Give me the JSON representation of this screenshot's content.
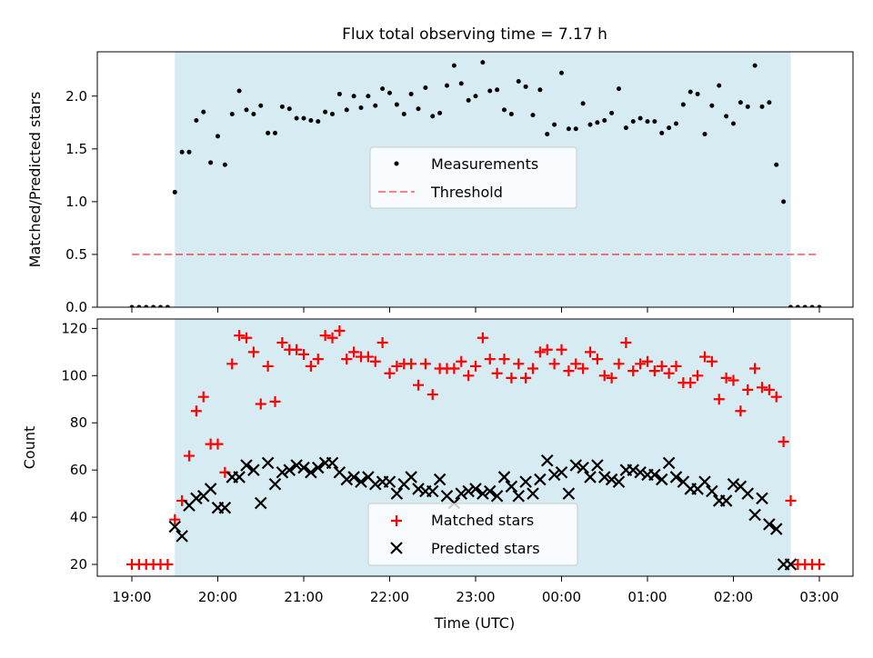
{
  "title": "Flux total observing time = 7.17 h",
  "colors": {
    "observing_span": "#add8e6",
    "measurements": "#000000",
    "threshold": "#ff0000",
    "matched": "#ff0000",
    "predicted": "#000000"
  },
  "chart_data": [
    {
      "type": "scatter",
      "x_axis": "time_utc",
      "ylabel": "Matched/Predicted stars",
      "ylim": [
        0,
        2.42
      ],
      "yticks": [
        "0.0",
        "0.5",
        "1.0",
        "1.5",
        "2.0"
      ],
      "grid": false,
      "legend_position": "center",
      "shaded_span_utc": [
        "19:30",
        "02:40"
      ],
      "threshold": {
        "name": "Threshold",
        "style": "dashed",
        "value": 0.5,
        "xrange": [
          "19:00",
          "03:00"
        ]
      },
      "series": [
        {
          "name": "Measurements",
          "marker": "dot",
          "x": [
            "19:00",
            "19:05",
            "19:10",
            "19:15",
            "19:20",
            "19:25",
            "19:30",
            "19:35",
            "19:40",
            "19:45",
            "19:50",
            "19:55",
            "20:00",
            "20:05",
            "20:10",
            "20:15",
            "20:20",
            "20:25",
            "20:30",
            "20:35",
            "20:40",
            "20:45",
            "20:50",
            "20:55",
            "21:00",
            "21:05",
            "21:10",
            "21:15",
            "21:20",
            "21:25",
            "21:30",
            "21:35",
            "21:40",
            "21:45",
            "21:50",
            "21:55",
            "22:00",
            "22:05",
            "22:10",
            "22:15",
            "22:20",
            "22:25",
            "22:30",
            "22:35",
            "22:40",
            "22:45",
            "22:50",
            "22:55",
            "23:00",
            "23:05",
            "23:10",
            "23:15",
            "23:20",
            "23:25",
            "23:30",
            "23:35",
            "23:40",
            "23:45",
            "23:50",
            "23:55",
            "00:00",
            "00:05",
            "00:10",
            "00:15",
            "00:20",
            "00:25",
            "00:30",
            "00:35",
            "00:40",
            "00:45",
            "00:50",
            "00:55",
            "01:00",
            "01:05",
            "01:10",
            "01:15",
            "01:20",
            "01:25",
            "01:30",
            "01:35",
            "01:40",
            "01:45",
            "01:50",
            "01:55",
            "02:00",
            "02:05",
            "02:10",
            "02:15",
            "02:20",
            "02:25",
            "02:30",
            "02:35",
            "02:40",
            "02:45",
            "02:50",
            "02:55",
            "03:00"
          ],
          "y": [
            0,
            0,
            0,
            0,
            0,
            0,
            1.09,
            1.47,
            1.47,
            1.77,
            1.85,
            1.37,
            1.62,
            1.35,
            1.83,
            2.05,
            1.87,
            1.83,
            1.91,
            1.65,
            1.65,
            1.9,
            1.88,
            1.79,
            1.79,
            1.77,
            1.76,
            1.85,
            1.83,
            2.02,
            1.87,
            2.0,
            1.89,
            2.0,
            1.91,
            2.07,
            2.03,
            1.92,
            1.83,
            2.02,
            1.88,
            2.08,
            1.81,
            1.84,
            2.1,
            2.29,
            2.12,
            1.96,
            2.0,
            2.32,
            2.05,
            2.06,
            1.87,
            1.83,
            2.14,
            2.09,
            1.82,
            2.06,
            1.64,
            1.73,
            2.22,
            1.69,
            1.69,
            1.93,
            1.73,
            1.75,
            1.77,
            1.84,
            2.07,
            1.7,
            1.76,
            1.79,
            1.76,
            1.76,
            1.65,
            1.7,
            1.74,
            1.92,
            2.04,
            2.02,
            1.64,
            1.91,
            2.1,
            1.81,
            1.74,
            1.94,
            1.9,
            2.29,
            1.9,
            1.94,
            1.35,
            1.0,
            0,
            0,
            0,
            0,
            0
          ]
        }
      ]
    },
    {
      "type": "scatter",
      "x_axis": "time_utc",
      "xlabel": "Time (UTC)",
      "ylabel": "Count",
      "ylim": [
        15,
        124
      ],
      "yticks": [
        "20",
        "40",
        "60",
        "80",
        "100",
        "120"
      ],
      "xticks": [
        "19:00",
        "20:00",
        "21:00",
        "22:00",
        "23:00",
        "00:00",
        "01:00",
        "02:00",
        "03:00"
      ],
      "grid": false,
      "legend_position": "lower center",
      "shaded_span_utc": [
        "19:30",
        "02:40"
      ],
      "series": [
        {
          "name": "Matched stars",
          "marker": "plus",
          "x": [
            "19:00",
            "19:05",
            "19:10",
            "19:15",
            "19:20",
            "19:25",
            "19:30",
            "19:35",
            "19:40",
            "19:45",
            "19:50",
            "19:55",
            "20:00",
            "20:05",
            "20:10",
            "20:15",
            "20:20",
            "20:25",
            "20:30",
            "20:35",
            "20:40",
            "20:45",
            "20:50",
            "20:55",
            "21:00",
            "21:05",
            "21:10",
            "21:15",
            "21:20",
            "21:25",
            "21:30",
            "21:35",
            "21:40",
            "21:45",
            "21:50",
            "21:55",
            "22:00",
            "22:05",
            "22:10",
            "22:15",
            "22:20",
            "22:25",
            "22:30",
            "22:35",
            "22:40",
            "22:45",
            "22:50",
            "22:55",
            "23:00",
            "23:05",
            "23:10",
            "23:15",
            "23:20",
            "23:25",
            "23:30",
            "23:35",
            "23:40",
            "23:45",
            "23:50",
            "23:55",
            "00:00",
            "00:05",
            "00:10",
            "00:15",
            "00:20",
            "00:25",
            "00:30",
            "00:35",
            "00:40",
            "00:45",
            "00:50",
            "00:55",
            "01:00",
            "01:05",
            "01:10",
            "01:15",
            "01:20",
            "01:25",
            "01:30",
            "01:35",
            "01:40",
            "01:45",
            "01:50",
            "01:55",
            "02:00",
            "02:05",
            "02:10",
            "02:15",
            "02:20",
            "02:25",
            "02:30",
            "02:35",
            "02:40",
            "02:45",
            "02:50",
            "02:55",
            "03:00"
          ],
          "y": [
            20,
            20,
            20,
            20,
            20,
            20,
            39,
            47,
            66,
            85,
            91,
            71,
            71,
            59,
            105,
            117,
            116,
            110,
            88,
            104,
            89,
            114,
            111,
            111,
            109,
            104,
            107,
            117,
            116,
            119,
            107,
            110,
            108,
            108,
            106,
            114,
            101,
            104,
            105,
            105,
            96,
            105,
            92,
            103,
            103,
            103,
            106,
            100,
            104,
            116,
            107,
            101,
            107,
            99,
            105,
            99,
            103,
            110,
            111,
            105,
            111,
            102,
            105,
            103,
            110,
            107,
            100,
            99,
            105,
            114,
            102,
            105,
            106,
            102,
            104,
            101,
            104,
            97,
            97,
            100,
            108,
            106,
            90,
            99,
            98,
            85,
            94,
            103,
            95,
            94,
            91,
            72,
            47,
            20,
            20,
            20,
            20
          ]
        },
        {
          "name": "Predicted stars",
          "marker": "x",
          "x": [
            "19:30",
            "19:35",
            "19:40",
            "19:45",
            "19:50",
            "19:55",
            "20:00",
            "20:05",
            "20:10",
            "20:15",
            "20:20",
            "20:25",
            "20:30",
            "20:35",
            "20:40",
            "20:45",
            "20:50",
            "20:55",
            "21:00",
            "21:05",
            "21:10",
            "21:15",
            "21:20",
            "21:25",
            "21:30",
            "21:35",
            "21:40",
            "21:45",
            "21:50",
            "21:55",
            "22:00",
            "22:05",
            "22:10",
            "22:15",
            "22:20",
            "22:25",
            "22:30",
            "22:35",
            "22:40",
            "22:45",
            "22:50",
            "22:55",
            "23:00",
            "23:05",
            "23:10",
            "23:15",
            "23:20",
            "23:25",
            "23:30",
            "23:35",
            "23:40",
            "23:45",
            "23:50",
            "23:55",
            "00:00",
            "00:05",
            "00:10",
            "00:15",
            "00:20",
            "00:25",
            "00:30",
            "00:35",
            "00:40",
            "00:45",
            "00:50",
            "00:55",
            "01:00",
            "01:05",
            "01:10",
            "01:15",
            "01:20",
            "01:25",
            "01:30",
            "01:35",
            "01:40",
            "01:45",
            "01:50",
            "01:55",
            "02:00",
            "02:05",
            "02:10",
            "02:15",
            "02:20",
            "02:25",
            "02:30",
            "02:35",
            "02:40"
          ],
          "y": [
            36,
            32,
            45,
            48,
            49,
            52,
            44,
            44,
            57,
            57,
            62,
            60,
            46,
            63,
            54,
            59,
            60,
            62,
            61,
            59,
            61,
            63,
            63,
            59,
            56,
            57,
            55,
            57,
            54,
            55,
            55,
            50,
            54,
            57,
            52,
            51,
            51,
            56,
            49,
            46,
            50,
            51,
            52,
            50,
            51,
            49,
            57,
            53,
            49,
            55,
            50,
            56,
            64,
            58,
            59,
            50,
            62,
            61,
            57,
            62,
            57,
            56,
            55,
            60,
            60,
            59,
            58,
            58,
            56,
            63,
            57,
            55,
            52,
            52,
            55,
            51,
            47,
            47,
            54,
            53,
            50,
            41,
            48,
            37,
            35,
            20,
            20
          ]
        }
      ]
    }
  ]
}
